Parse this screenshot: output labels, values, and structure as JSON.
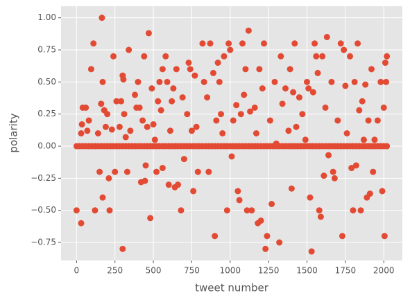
{
  "chart_data": {
    "type": "scatter",
    "xlabel": "tweet number",
    "ylabel": "polarity",
    "color": "#e24a33",
    "grid": true,
    "xlim": [
      -101,
      2121
    ],
    "ylim": [
      -0.89,
      1.09
    ],
    "xticks": [
      0,
      250,
      500,
      750,
      1000,
      1250,
      1500,
      1750,
      2000
    ],
    "yticks": [
      {
        "value": -0.75,
        "label": "−0.75"
      },
      {
        "value": -0.5,
        "label": "−0.50"
      },
      {
        "value": -0.25,
        "label": "−0.25"
      },
      {
        "value": 0,
        "label": "0.00"
      },
      0.25,
      {
        "value": 0.5,
        "label": "0.50"
      },
      0.75,
      {
        "value": 1,
        "label": "1.00"
      }
    ],
    "x": [
      0,
      20,
      40,
      60,
      80,
      100,
      120,
      140,
      160,
      180,
      200,
      220,
      240,
      260,
      280,
      300,
      320,
      340,
      360,
      380,
      400,
      420,
      440,
      460,
      480,
      500,
      520,
      540,
      560,
      580,
      600,
      620,
      640,
      660,
      680,
      700,
      720,
      740,
      760,
      780,
      800,
      820,
      840,
      860,
      880,
      900,
      920,
      940,
      960,
      980,
      1000,
      1020,
      1040,
      1060,
      1080,
      1100,
      1120,
      1140,
      1160,
      1180,
      1200,
      1220,
      1240,
      1260,
      1280,
      1300,
      1320,
      1340,
      1360,
      1380,
      1400,
      1420,
      1440,
      1460,
      1480,
      1500,
      1520,
      1540,
      1560,
      1580,
      1600,
      1620,
      1640,
      1660,
      1680,
      1700,
      1720,
      1740,
      1760,
      1780,
      1800,
      1820,
      1840,
      1860,
      1880,
      1900,
      1920,
      1940,
      1960,
      1980,
      2000,
      2020,
      0,
      30,
      30,
      35,
      40,
      60,
      70,
      80,
      95,
      110,
      120,
      140,
      150,
      160,
      165,
      170,
      170,
      180,
      190,
      200,
      210,
      215,
      230,
      240,
      250,
      260,
      280,
      290,
      300,
      305,
      300,
      310,
      320,
      330,
      340,
      350,
      380,
      390,
      400,
      410,
      420,
      430,
      440,
      445,
      450,
      460,
      470,
      480,
      490,
      500,
      510,
      520,
      530,
      540,
      550,
      560,
      560,
      580,
      590,
      600,
      610,
      620,
      630,
      640,
      650,
      660,
      680,
      690,
      700,
      720,
      730,
      740,
      750,
      760,
      770,
      780,
      790,
      820,
      830,
      850,
      860,
      870,
      890,
      900,
      910,
      920,
      930,
      940,
      950,
      960,
      980,
      990,
      1000,
      1010,
      1020,
      1040,
      1050,
      1060,
      1070,
      1080,
      1090,
      1100,
      1110,
      1120,
      1130,
      1140,
      1160,
      1170,
      1180,
      1190,
      1200,
      1210,
      1220,
      1230,
      1240,
      1260,
      1270,
      1290,
      1300,
      1320,
      1330,
      1340,
      1360,
      1380,
      1390,
      1400,
      1410,
      1420,
      1430,
      1450,
      1470,
      1490,
      1500,
      1510,
      1520,
      1530,
      1540,
      1550,
      1560,
      1570,
      1580,
      1590,
      1600,
      1610,
      1620,
      1630,
      1640,
      1660,
      1670,
      1680,
      1700,
      1720,
      1730,
      1740,
      1750,
      1760,
      1780,
      1790,
      1800,
      1810,
      1820,
      1830,
      1840,
      1850,
      1860,
      1870,
      1880,
      1890,
      1900,
      1910,
      1920,
      1930,
      1940,
      1960,
      1980,
      1990,
      2000,
      2005,
      2010,
      2020,
      2015
    ],
    "values": [
      0,
      0,
      0,
      0,
      0,
      0,
      0,
      0,
      0,
      0,
      0,
      0,
      0,
      0,
      0,
      0,
      0,
      0,
      0,
      0,
      0,
      0,
      0,
      0,
      0,
      0,
      0,
      0,
      0,
      0,
      0,
      0,
      0,
      0,
      0,
      0,
      0,
      0,
      0,
      0,
      0,
      0,
      0,
      0,
      0,
      0,
      0,
      0,
      0,
      0,
      0,
      0,
      0,
      0,
      0,
      0,
      0,
      0,
      0,
      0,
      0,
      0,
      0,
      0,
      0,
      0,
      0,
      0,
      0,
      0,
      0,
      0,
      0,
      0,
      0,
      0,
      0,
      0,
      0,
      0,
      0,
      0,
      0,
      0,
      0,
      0,
      0,
      0,
      0,
      0,
      0,
      0,
      0,
      0,
      0,
      0,
      0,
      0,
      0,
      0,
      0,
      0,
      -0.5,
      -0.6,
      0.1,
      0.17,
      0.3,
      0.3,
      0.12,
      0.2,
      0.6,
      0.8,
      -0.5,
      0.1,
      -0.2,
      0.33,
      1.0,
      0.5,
      -0.4,
      0.28,
      0.15,
      0.25,
      -0.25,
      -0.5,
      0.13,
      0.7,
      -0.2,
      0.35,
      0.15,
      0.35,
      0.55,
      0.52,
      -0.8,
      0.25,
      0.07,
      -0.2,
      0.75,
      0.12,
      0.4,
      0.3,
      0.5,
      0.3,
      -0.28,
      0.2,
      0.7,
      -0.27,
      -0.15,
      0.15,
      0.88,
      -0.56,
      0.45,
      0.17,
      0.05,
      -0.2,
      0.35,
      0.5,
      0.28,
      0.6,
      -0.17,
      0.7,
      0.5,
      -0.3,
      0.12,
      0.35,
      0.45,
      -0.32,
      0.6,
      -0.3,
      -0.5,
      0.38,
      -0.1,
      0.25,
      0.65,
      0.6,
      0.12,
      -0.35,
      0.55,
      0.15,
      -0.2,
      0.8,
      0.5,
      0.38,
      -0.2,
      0.8,
      0.57,
      -0.7,
      0.2,
      0.65,
      0.5,
      0.25,
      0.1,
      0.7,
      -0.5,
      0.8,
      0.75,
      -0.08,
      0.2,
      0.32,
      -0.35,
      -0.42,
      0.25,
      0.8,
      0.4,
      0.6,
      -0.5,
      0.9,
      0.27,
      -0.5,
      0.3,
      0.1,
      -0.6,
      0.6,
      -0.58,
      0.45,
      0.8,
      -0.8,
      -0.7,
      0.2,
      -0.45,
      0.5,
      0.02,
      -0.75,
      0.7,
      0.33,
      0.45,
      0.12,
      0.6,
      -0.33,
      0.42,
      0.8,
      0.15,
      0.38,
      0.25,
      0.05,
      0.5,
      0.45,
      -0.4,
      -0.82,
      0.42,
      0.8,
      0.7,
      0.57,
      -0.5,
      -0.55,
      0.7,
      -0.23,
      0.3,
      0.85,
      -0.07,
      0.5,
      -0.2,
      -0.25,
      0.2,
      0.8,
      -0.7,
      0.75,
      0.47,
      0.1,
      0.7,
      -0.17,
      -0.5,
      0.5,
      -0.15,
      0.8,
      0.28,
      -0.5,
      0.35,
      0.05,
      0.48,
      -0.4,
      0.2,
      -0.37,
      0.6,
      -0.2,
      0.05,
      0.2,
      0.5,
      -0.35,
      0.3,
      -0.7,
      0.65,
      0.7,
      0.5
    ]
  }
}
